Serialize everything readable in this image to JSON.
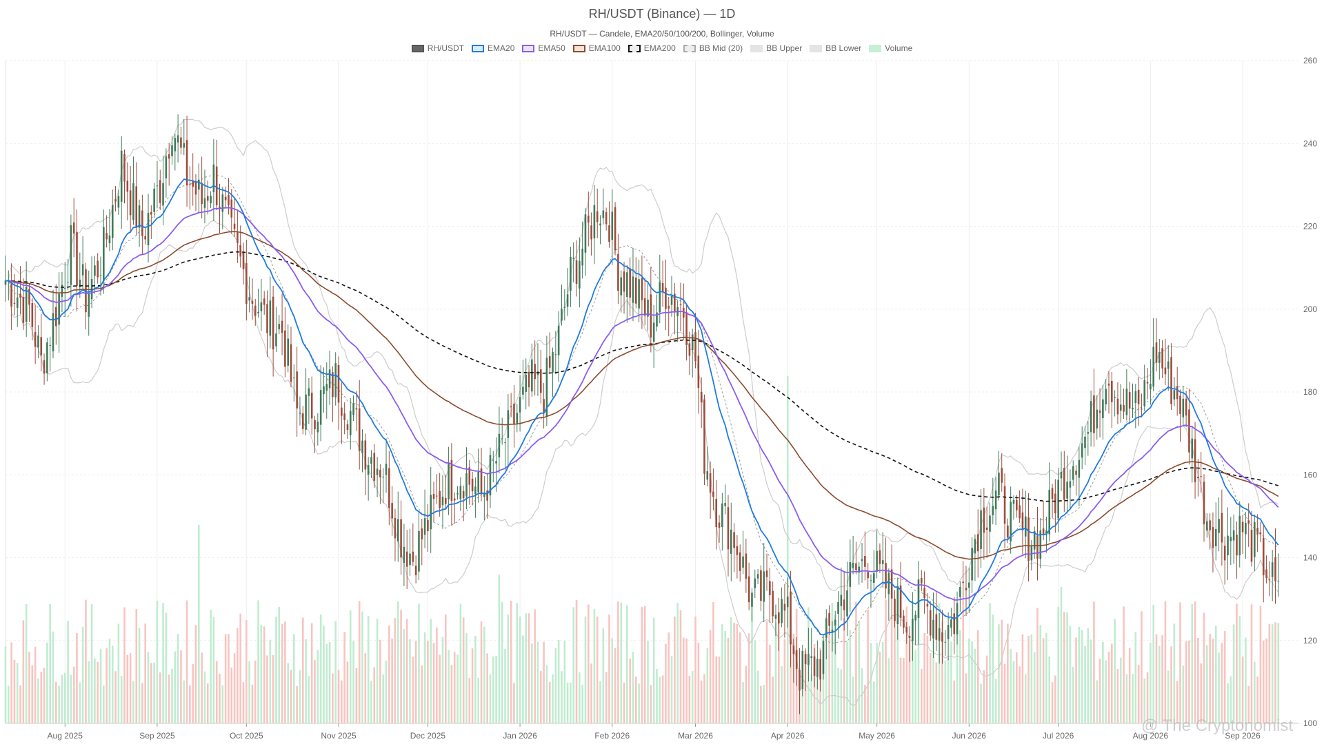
{
  "title": "RH/USDT (Binance) — 1D",
  "subtitle": "RH/USDT — Candele, EMA20/50/100/200, Bollinger, Volume",
  "watermark": "@ The Cryptonomist",
  "colors": {
    "up": "#3f7a5a",
    "down": "#9e4b3c",
    "ema20": "#1f7be0",
    "ema50": "#8a5cf0",
    "ema100": "#8b4a2b",
    "ema200": "#111111",
    "bbMid": "#999999",
    "bbBand": "#cccccc",
    "volUp": "#bfeccf",
    "volDown": "#f8c4c0",
    "grid": "#eeeeee"
  },
  "legend": [
    {
      "label": "RH/USDT",
      "fill": "#666666",
      "stroke": "#555555",
      "dash": false
    },
    {
      "label": "EMA20",
      "fill": "#dcebfb",
      "stroke": "#1f7be0",
      "dash": false
    },
    {
      "label": "EMA50",
      "fill": "#ece4fd",
      "stroke": "#8a5cf0",
      "dash": false
    },
    {
      "label": "EMA100",
      "fill": "#f1e4dc",
      "stroke": "#8b4a2b",
      "dash": false
    },
    {
      "label": "EMA200",
      "fill": "#eeeeee",
      "stroke": "#111111",
      "dash": true
    },
    {
      "label": "BB Mid (20)",
      "fill": "#eeeeee",
      "stroke": "#aaaaaa",
      "dash": true
    },
    {
      "label": "BB Upper",
      "fill": "#e4e4e4",
      "stroke": "#e4e4e4",
      "dash": false
    },
    {
      "label": "BB Lower",
      "fill": "#e4e4e4",
      "stroke": "#e4e4e4",
      "dash": false
    },
    {
      "label": "Volume",
      "fill": "#c6efd6",
      "stroke": "#c6efd6",
      "dash": false
    }
  ],
  "chart_data": {
    "type": "candlestick",
    "x_start": "2025-07-12",
    "x_end": "2026-09-20",
    "y_range": [
      100,
      260
    ],
    "y_ticks": [
      "260",
      "240",
      "220",
      "200",
      "180",
      "160",
      "140",
      "120",
      "100"
    ],
    "x_ticks": [
      {
        "label": "Aug 2025",
        "date": "2025-08-01"
      },
      {
        "label": "Sep 2025",
        "date": "2025-09-01"
      },
      {
        "label": "Oct 2025",
        "date": "2025-10-01"
      },
      {
        "label": "Nov 2025",
        "date": "2025-11-01"
      },
      {
        "label": "Dec 2025",
        "date": "2025-12-01"
      },
      {
        "label": "Jan 2026",
        "date": "2026-01-01"
      },
      {
        "label": "Feb 2026",
        "date": "2026-02-01"
      },
      {
        "label": "Mar 2026",
        "date": "2026-03-01"
      },
      {
        "label": "Apr 2026",
        "date": "2026-04-01"
      },
      {
        "label": "May 2026",
        "date": "2026-05-01"
      },
      {
        "label": "Jun 2026",
        "date": "2026-06-01"
      },
      {
        "label": "Jul 2026",
        "date": "2026-07-01"
      },
      {
        "label": "Aug 2026",
        "date": "2026-08-01"
      },
      {
        "label": "Sep 2026",
        "date": "2026-09-01"
      }
    ],
    "close_anchors": [
      [
        "2025-07-12",
        207
      ],
      [
        "2025-07-20",
        200
      ],
      [
        "2025-07-24",
        187
      ],
      [
        "2025-07-28",
        197
      ],
      [
        "2025-08-03",
        215
      ],
      [
        "2025-08-08",
        203
      ],
      [
        "2025-08-14",
        214
      ],
      [
        "2025-08-20",
        235
      ],
      [
        "2025-08-27",
        218
      ],
      [
        "2025-09-02",
        230
      ],
      [
        "2025-09-06",
        245
      ],
      [
        "2025-09-11",
        232
      ],
      [
        "2025-09-16",
        226
      ],
      [
        "2025-09-20",
        232
      ],
      [
        "2025-09-26",
        217
      ],
      [
        "2025-10-03",
        203
      ],
      [
        "2025-10-08",
        197
      ],
      [
        "2025-10-13",
        195
      ],
      [
        "2025-10-18",
        175
      ],
      [
        "2025-10-25",
        177
      ],
      [
        "2025-10-31",
        183
      ],
      [
        "2025-11-05",
        175
      ],
      [
        "2025-11-11",
        165
      ],
      [
        "2025-11-16",
        162
      ],
      [
        "2025-11-22",
        145
      ],
      [
        "2025-11-26",
        140
      ],
      [
        "2025-12-02",
        150
      ],
      [
        "2025-12-07",
        158
      ],
      [
        "2025-12-13",
        160
      ],
      [
        "2025-12-19",
        155
      ],
      [
        "2025-12-25",
        165
      ],
      [
        "2025-12-31",
        175
      ],
      [
        "2026-01-05",
        182
      ],
      [
        "2026-01-09",
        180
      ],
      [
        "2026-01-14",
        193
      ],
      [
        "2026-01-18",
        208
      ],
      [
        "2026-01-22",
        215
      ],
      [
        "2026-01-27",
        225
      ],
      [
        "2026-01-31",
        222
      ],
      [
        "2026-02-03",
        210
      ],
      [
        "2026-02-08",
        205
      ],
      [
        "2026-02-14",
        197
      ],
      [
        "2026-02-19",
        205
      ],
      [
        "2026-02-25",
        200
      ],
      [
        "2026-03-01",
        188
      ],
      [
        "2026-03-04",
        165
      ],
      [
        "2026-03-08",
        153
      ],
      [
        "2026-03-14",
        145
      ],
      [
        "2026-03-20",
        130
      ],
      [
        "2026-03-26",
        132
      ],
      [
        "2026-04-01",
        125
      ],
      [
        "2026-04-05",
        112
      ],
      [
        "2026-04-12",
        115
      ],
      [
        "2026-04-17",
        127
      ],
      [
        "2026-04-22",
        135
      ],
      [
        "2026-04-28",
        140
      ],
      [
        "2026-05-05",
        132
      ],
      [
        "2026-05-11",
        125
      ],
      [
        "2026-05-16",
        130
      ],
      [
        "2026-05-23",
        122
      ],
      [
        "2026-05-27",
        125
      ],
      [
        "2026-06-01",
        140
      ],
      [
        "2026-06-05",
        150
      ],
      [
        "2026-06-11",
        155
      ],
      [
        "2026-06-16",
        148
      ],
      [
        "2026-06-20",
        145
      ],
      [
        "2026-06-25",
        145
      ],
      [
        "2026-06-30",
        155
      ],
      [
        "2026-07-05",
        163
      ],
      [
        "2026-07-11",
        170
      ],
      [
        "2026-07-17",
        185
      ],
      [
        "2026-07-22",
        178
      ],
      [
        "2026-07-28",
        175
      ],
      [
        "2026-08-03",
        190
      ],
      [
        "2026-08-07",
        183
      ],
      [
        "2026-08-11",
        178
      ],
      [
        "2026-08-16",
        163
      ],
      [
        "2026-08-20",
        150
      ],
      [
        "2026-08-26",
        145
      ],
      [
        "2026-09-01",
        147
      ],
      [
        "2026-09-06",
        142
      ],
      [
        "2026-09-10",
        136
      ],
      [
        "2026-09-13",
        130
      ]
    ],
    "volume_spikes": [
      [
        "2025-09-15",
        3.2
      ],
      [
        "2025-12-25",
        2.4
      ],
      [
        "2026-04-01",
        5.6
      ],
      [
        "2026-07-02",
        2.2
      ]
    ],
    "series": [
      {
        "name": "RH/USDT"
      },
      {
        "name": "EMA20",
        "period": 20
      },
      {
        "name": "EMA50",
        "period": 50
      },
      {
        "name": "EMA100",
        "period": 100
      },
      {
        "name": "EMA200",
        "period": 200
      },
      {
        "name": "BB Mid (20)"
      },
      {
        "name": "BB Upper"
      },
      {
        "name": "BB Lower"
      },
      {
        "name": "Volume"
      }
    ]
  }
}
